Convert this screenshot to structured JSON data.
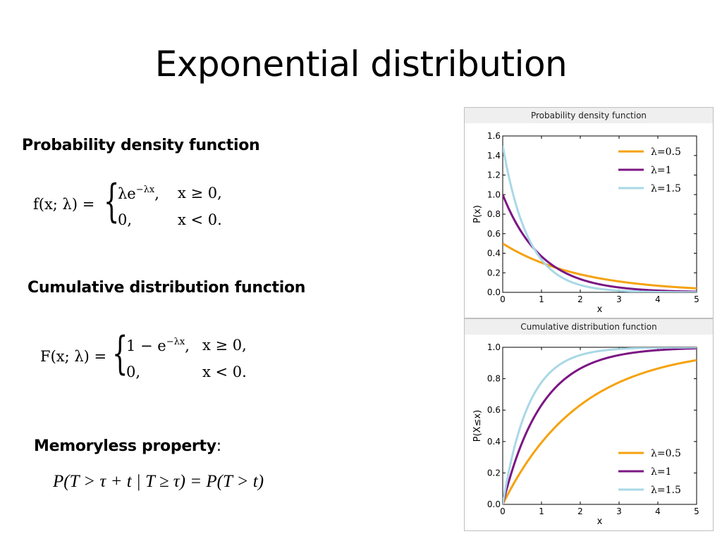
{
  "slide": {
    "title": "Exponential distribution",
    "pdf_heading": "Probability density function",
    "cdf_heading": "Cumulative distribution function",
    "memoryless_heading": "Memoryless property",
    "memoryless_colon": ":"
  },
  "formulas": {
    "pdf_lhs": "f(x; λ) =",
    "pdf_row1": "λe",
    "pdf_row1_exp": "−λx",
    "pdf_row1_comma": ",",
    "pdf_row1_cond": "x ≥ 0,",
    "pdf_row2": "0,",
    "pdf_row2_cond": "x < 0.",
    "cdf_lhs": "F(x; λ) =",
    "cdf_row1": "1 − e",
    "cdf_row1_exp": "−λx",
    "cdf_row1_comma": ",",
    "cdf_row1_cond": "x ≥ 0,",
    "cdf_row2": "0,",
    "cdf_row2_cond": "x < 0.",
    "memoryless": "P(T > τ + t | T ≥ τ) = P(T > t)"
  },
  "colors": {
    "lambda_0_5": "#f5a20e",
    "lambda_1": "#7b1683",
    "lambda_1_5": "#a9d8e6",
    "chart_title_bar": "#efefef"
  },
  "chart_data": [
    {
      "type": "line",
      "title": "Probability density function",
      "xlabel": "x",
      "ylabel": "P(x)",
      "xlim": [
        0,
        5
      ],
      "ylim": [
        0,
        1.6
      ],
      "xticks": [
        "0",
        "1",
        "2",
        "3",
        "4",
        "5"
      ],
      "yticks": [
        "0.0",
        "0.2",
        "0.4",
        "0.6",
        "0.8",
        "1.0",
        "1.2",
        "1.4",
        "1.6"
      ],
      "legend_position": "top-right",
      "grid": false,
      "series": [
        {
          "name": "λ=0.5",
          "lambda": 0.5,
          "x": [
            0,
            0.5,
            1,
            1.5,
            2,
            2.5,
            3,
            3.5,
            4,
            4.5,
            5
          ],
          "y": [
            0.5,
            0.389,
            0.303,
            0.236,
            0.184,
            0.143,
            0.112,
            0.087,
            0.068,
            0.053,
            0.041
          ]
        },
        {
          "name": "λ=1",
          "lambda": 1,
          "x": [
            0,
            0.5,
            1,
            1.5,
            2,
            2.5,
            3,
            3.5,
            4,
            4.5,
            5
          ],
          "y": [
            1.0,
            0.607,
            0.368,
            0.223,
            0.135,
            0.082,
            0.05,
            0.03,
            0.018,
            0.011,
            0.007
          ]
        },
        {
          "name": "λ=1.5",
          "lambda": 1.5,
          "x": [
            0,
            0.5,
            1,
            1.5,
            2,
            2.5,
            3,
            3.5,
            4,
            4.5,
            5
          ],
          "y": [
            1.5,
            0.709,
            0.335,
            0.158,
            0.075,
            0.035,
            0.017,
            0.008,
            0.004,
            0.002,
            0.001
          ]
        }
      ]
    },
    {
      "type": "line",
      "title": "Cumulative distribution function",
      "xlabel": "x",
      "ylabel": "P(X≤x)",
      "xlim": [
        0,
        5
      ],
      "ylim": [
        0,
        1.0
      ],
      "xticks": [
        "0",
        "1",
        "2",
        "3",
        "4",
        "5"
      ],
      "yticks": [
        "0.0",
        "0.2",
        "0.4",
        "0.6",
        "0.8",
        "1.0"
      ],
      "legend_position": "bottom-right",
      "grid": false,
      "series": [
        {
          "name": "λ=0.5",
          "lambda": 0.5,
          "x": [
            0,
            0.5,
            1,
            1.5,
            2,
            2.5,
            3,
            3.5,
            4,
            4.5,
            5
          ],
          "y": [
            0,
            0.221,
            0.393,
            0.528,
            0.632,
            0.713,
            0.777,
            0.826,
            0.865,
            0.895,
            0.918
          ]
        },
        {
          "name": "λ=1",
          "lambda": 1,
          "x": [
            0,
            0.5,
            1,
            1.5,
            2,
            2.5,
            3,
            3.5,
            4,
            4.5,
            5
          ],
          "y": [
            0,
            0.393,
            0.632,
            0.777,
            0.865,
            0.918,
            0.95,
            0.97,
            0.982,
            0.989,
            0.993
          ]
        },
        {
          "name": "λ=1.5",
          "lambda": 1.5,
          "x": [
            0,
            0.5,
            1,
            1.5,
            2,
            2.5,
            3,
            3.5,
            4,
            4.5,
            5
          ],
          "y": [
            0,
            0.528,
            0.777,
            0.895,
            0.95,
            0.976,
            0.989,
            0.995,
            0.998,
            0.999,
            0.999
          ]
        }
      ]
    }
  ]
}
